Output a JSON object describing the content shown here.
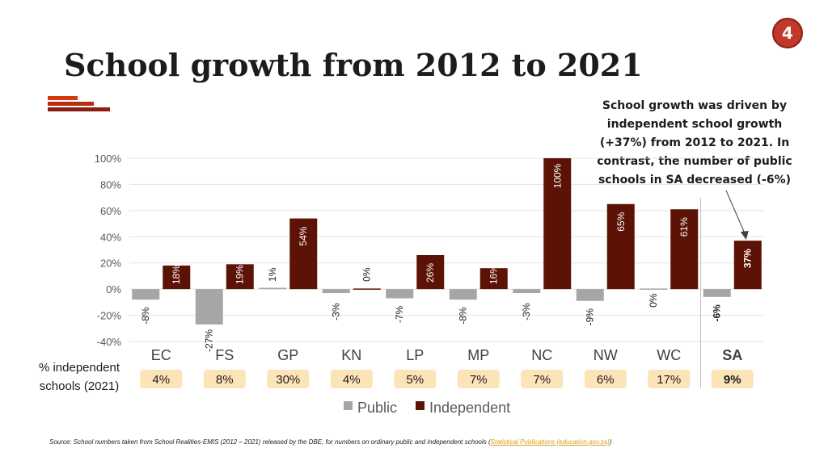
{
  "slide": {
    "page_number": "4",
    "title": "School growth from 2012 to 2021",
    "callout": "School growth was driven by independent school growth (+37%) from 2012 to 2021. In contrast, the number of public schools in SA decreased (-6%)",
    "source_prefix": "Source: School numbers taken from School Realities-EMIS (2012 – 2021) released by the DBE, for numbers on ordinary public and independent schools (",
    "source_link": "Statistical Publications (education.gov.za)",
    "source_suffix": ")"
  },
  "colors": {
    "public": "#a6a6a6",
    "independent": "#5c1204",
    "badge": "#fde4b8",
    "accent": "#c0392b"
  },
  "chart_data": {
    "type": "bar",
    "categories": [
      "EC",
      "FS",
      "GP",
      "KN",
      "LP",
      "MP",
      "NC",
      "NW",
      "WC",
      "SA"
    ],
    "series": [
      {
        "name": "Public",
        "values": [
          -8,
          -27,
          1,
          -3,
          -7,
          -8,
          -3,
          -9,
          0,
          -6
        ],
        "labels": [
          "-8%",
          "-27%",
          "1%",
          "-3%",
          "-7%",
          "-8%",
          "-3%",
          "-9%",
          "0%",
          "-6%"
        ]
      },
      {
        "name": "Independent",
        "values": [
          18,
          19,
          54,
          0,
          26,
          16,
          100,
          65,
          61,
          37
        ],
        "labels": [
          "18%",
          "19%",
          "54%",
          "0%",
          "26%",
          "16%",
          "100%",
          "65%",
          "61%",
          "37%"
        ]
      }
    ],
    "ylim": [
      -40,
      100
    ],
    "yticks": [
      -40,
      -20,
      0,
      20,
      40,
      60,
      80,
      100
    ],
    "ytick_labels": [
      "-40%",
      "-20%",
      "0%",
      "20%",
      "40%",
      "60%",
      "80%",
      "100%"
    ],
    "grid": true,
    "legend": "bottom",
    "independent_share_label": "% independent schools (2021)",
    "independent_share": [
      "4%",
      "8%",
      "30%",
      "4%",
      "5%",
      "7%",
      "7%",
      "6%",
      "17%",
      "9%"
    ],
    "highlight_category": "SA"
  }
}
